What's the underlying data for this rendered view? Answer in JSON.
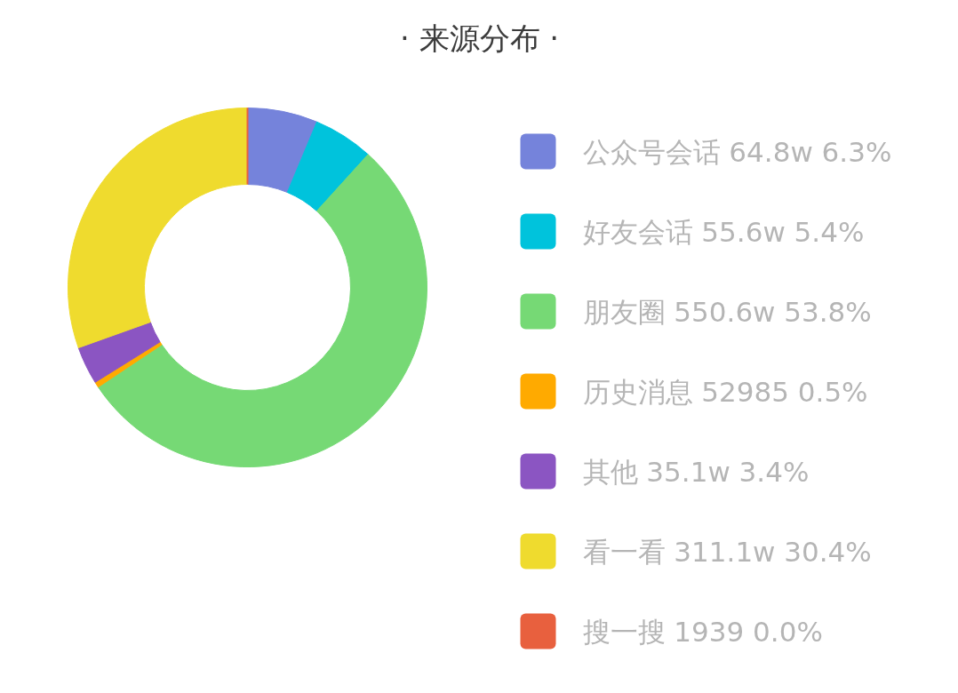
{
  "chart_data": {
    "type": "donut",
    "title": "· 来源分布 ·",
    "categories": [
      "公众号会话",
      "好友会话",
      "朋友圈",
      "历史消息",
      "其他",
      "看一看",
      "搜一搜"
    ],
    "values": [
      6.3,
      5.4,
      53.8,
      0.5,
      3.4,
      30.4,
      0.0
    ],
    "value_labels": [
      "64.8w 6.3%",
      "55.6w 5.4%",
      "550.6w 53.8%",
      "52985 0.5%",
      "35.1w 3.4%",
      "311.1w 30.4%",
      "1939 0.0%"
    ],
    "colors": [
      "#7583db",
      "#00c3dc",
      "#76d975",
      "#ffaa00",
      "#8b55c2",
      "#efdb2e",
      "#e8603e"
    ],
    "legend": "right"
  }
}
